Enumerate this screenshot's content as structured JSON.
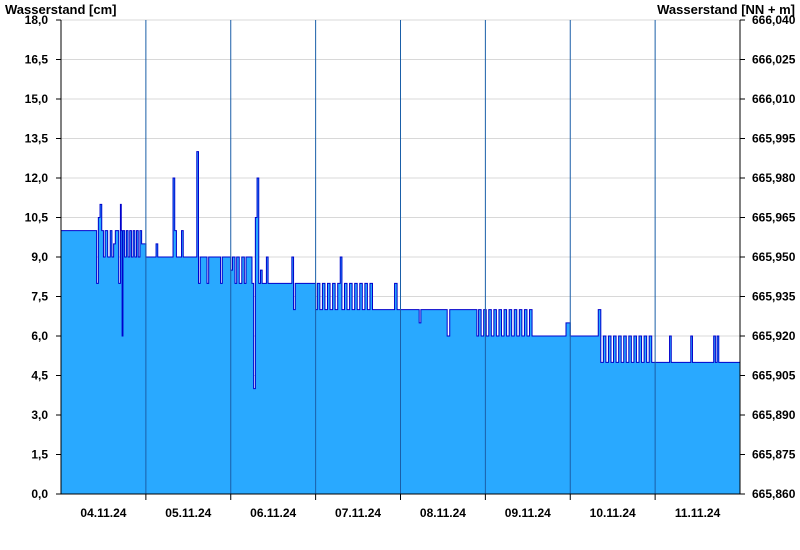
{
  "chart_data": {
    "type": "area",
    "title": "",
    "ylabel": "Wasserstand [cm]",
    "ylabel_right": "Wasserstand [NN + m]",
    "ylim": [
      0,
      18
    ],
    "ylim_right": [
      665.86,
      666.04
    ],
    "y_ticks": [
      "0,0",
      "1,5",
      "3,0",
      "4,5",
      "6,0",
      "7,5",
      "9,0",
      "10,5",
      "12,0",
      "13,5",
      "15,0",
      "16,5",
      "18,0"
    ],
    "y_ticks_right": [
      "665,860",
      "665,875",
      "665,890",
      "665,905",
      "665,920",
      "665,935",
      "665,950",
      "665,965",
      "665,980",
      "665,995",
      "666,010",
      "666,025",
      "666,040"
    ],
    "x_range_days": [
      "03.11.24",
      "11.11.24"
    ],
    "x_tick_labels": [
      "04.11.24",
      "05.11.24",
      "06.11.24",
      "07.11.24",
      "08.11.24",
      "09.11.24",
      "10.11.24",
      "11.11.24"
    ],
    "grid": true,
    "fill_color": "#29a9ff",
    "line_color": "#0000cc",
    "series": [
      {
        "name": "",
        "points": [
          [
            0.0,
            10
          ],
          [
            0.4,
            10
          ],
          [
            0.42,
            8
          ],
          [
            0.44,
            10.5
          ],
          [
            0.46,
            11
          ],
          [
            0.48,
            10
          ],
          [
            0.5,
            9
          ],
          [
            0.52,
            10
          ],
          [
            0.55,
            9
          ],
          [
            0.58,
            10
          ],
          [
            0.6,
            9
          ],
          [
            0.62,
            9.5
          ],
          [
            0.64,
            10
          ],
          [
            0.66,
            10
          ],
          [
            0.68,
            8
          ],
          [
            0.7,
            11
          ],
          [
            0.71,
            10
          ],
          [
            0.72,
            6
          ],
          [
            0.73,
            10
          ],
          [
            0.75,
            9
          ],
          [
            0.77,
            10
          ],
          [
            0.79,
            9
          ],
          [
            0.81,
            10
          ],
          [
            0.83,
            9
          ],
          [
            0.85,
            10
          ],
          [
            0.87,
            9
          ],
          [
            0.89,
            10
          ],
          [
            0.91,
            9
          ],
          [
            0.93,
            10
          ],
          [
            0.95,
            9.5
          ],
          [
            1.0,
            9
          ],
          [
            1.1,
            9
          ],
          [
            1.12,
            9.5
          ],
          [
            1.14,
            9
          ],
          [
            1.3,
            9
          ],
          [
            1.32,
            12
          ],
          [
            1.34,
            10
          ],
          [
            1.36,
            9
          ],
          [
            1.4,
            9
          ],
          [
            1.42,
            10
          ],
          [
            1.44,
            9
          ],
          [
            1.58,
            9
          ],
          [
            1.6,
            13
          ],
          [
            1.62,
            8
          ],
          [
            1.64,
            9
          ],
          [
            1.7,
            9
          ],
          [
            1.72,
            8
          ],
          [
            1.74,
            9
          ],
          [
            1.86,
            9
          ],
          [
            1.88,
            8
          ],
          [
            1.9,
            9
          ],
          [
            1.95,
            9
          ],
          [
            2.0,
            8.5
          ],
          [
            2.02,
            9
          ],
          [
            2.05,
            8
          ],
          [
            2.07,
            9
          ],
          [
            2.1,
            8
          ],
          [
            2.13,
            9
          ],
          [
            2.16,
            8
          ],
          [
            2.18,
            9
          ],
          [
            2.25,
            8
          ],
          [
            2.27,
            4
          ],
          [
            2.29,
            10.5
          ],
          [
            2.31,
            12
          ],
          [
            2.33,
            8
          ],
          [
            2.35,
            8.5
          ],
          [
            2.37,
            8
          ],
          [
            2.4,
            8
          ],
          [
            2.42,
            9
          ],
          [
            2.44,
            8
          ],
          [
            2.7,
            8
          ],
          [
            2.72,
            9
          ],
          [
            2.74,
            7
          ],
          [
            2.76,
            8
          ],
          [
            2.95,
            8
          ],
          [
            3.0,
            7
          ],
          [
            3.02,
            8
          ],
          [
            3.05,
            7
          ],
          [
            3.08,
            8
          ],
          [
            3.11,
            7
          ],
          [
            3.14,
            8
          ],
          [
            3.17,
            7
          ],
          [
            3.2,
            8
          ],
          [
            3.23,
            7
          ],
          [
            3.26,
            8
          ],
          [
            3.29,
            9
          ],
          [
            3.31,
            7
          ],
          [
            3.34,
            8
          ],
          [
            3.37,
            7
          ],
          [
            3.4,
            8
          ],
          [
            3.43,
            7
          ],
          [
            3.46,
            8
          ],
          [
            3.49,
            7
          ],
          [
            3.52,
            8
          ],
          [
            3.55,
            7
          ],
          [
            3.58,
            8
          ],
          [
            3.61,
            7
          ],
          [
            3.64,
            8
          ],
          [
            3.67,
            7
          ],
          [
            3.9,
            7
          ],
          [
            3.93,
            8
          ],
          [
            3.96,
            7
          ],
          [
            4.2,
            7
          ],
          [
            4.22,
            6.5
          ],
          [
            4.24,
            7
          ],
          [
            4.5,
            7
          ],
          [
            4.55,
            6
          ],
          [
            4.58,
            7
          ],
          [
            4.9,
            7
          ],
          [
            4.9,
            6
          ],
          [
            4.92,
            7
          ],
          [
            4.95,
            6
          ],
          [
            4.98,
            7
          ],
          [
            5.01,
            6
          ],
          [
            5.04,
            7
          ],
          [
            5.07,
            6
          ],
          [
            5.1,
            7
          ],
          [
            5.13,
            6
          ],
          [
            5.16,
            7
          ],
          [
            5.19,
            6
          ],
          [
            5.22,
            7
          ],
          [
            5.25,
            6
          ],
          [
            5.28,
            7
          ],
          [
            5.31,
            6
          ],
          [
            5.34,
            7
          ],
          [
            5.37,
            6
          ],
          [
            5.4,
            7
          ],
          [
            5.43,
            6
          ],
          [
            5.46,
            7
          ],
          [
            5.49,
            6
          ],
          [
            5.52,
            7
          ],
          [
            5.55,
            6
          ],
          [
            5.9,
            6
          ],
          [
            5.95,
            6.5
          ],
          [
            6.0,
            6
          ],
          [
            6.3,
            6
          ],
          [
            6.33,
            7
          ],
          [
            6.36,
            5
          ],
          [
            6.39,
            6
          ],
          [
            6.42,
            5
          ],
          [
            6.45,
            6
          ],
          [
            6.48,
            5
          ],
          [
            6.51,
            6
          ],
          [
            6.54,
            5
          ],
          [
            6.57,
            6
          ],
          [
            6.6,
            5
          ],
          [
            6.63,
            6
          ],
          [
            6.66,
            5
          ],
          [
            6.69,
            6
          ],
          [
            6.72,
            5
          ],
          [
            6.75,
            6
          ],
          [
            6.78,
            5
          ],
          [
            6.81,
            6
          ],
          [
            6.84,
            5
          ],
          [
            6.87,
            6
          ],
          [
            6.9,
            5
          ],
          [
            6.93,
            6
          ],
          [
            6.96,
            5
          ],
          [
            7.0,
            5
          ],
          [
            7.15,
            5
          ],
          [
            7.17,
            6
          ],
          [
            7.19,
            5
          ],
          [
            7.4,
            5
          ],
          [
            7.42,
            6
          ],
          [
            7.44,
            5
          ],
          [
            7.67,
            5
          ],
          [
            7.69,
            6
          ],
          [
            7.71,
            5
          ],
          [
            7.73,
            6
          ],
          [
            7.75,
            5
          ],
          [
            8.0,
            5
          ]
        ]
      }
    ]
  }
}
